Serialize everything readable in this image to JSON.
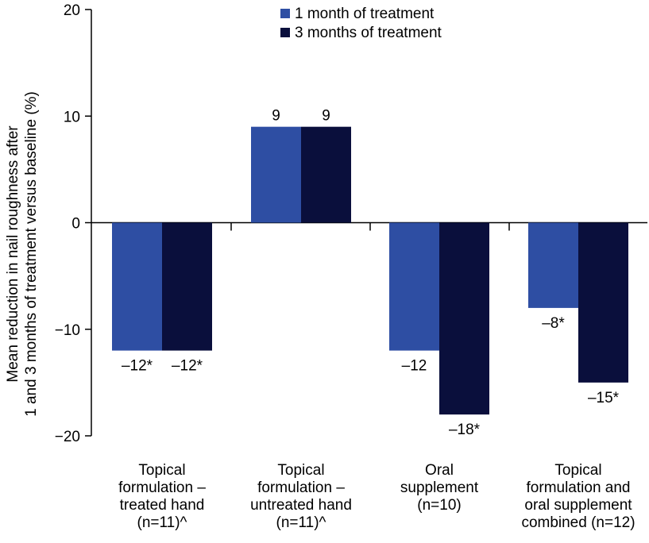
{
  "chart_data": {
    "type": "bar",
    "title": "",
    "ylabel_lines": [
      "Mean reduction in nail roughness after",
      "1 and 3 months of treatment versus baseline (%)"
    ],
    "xlabel": "",
    "ylim": [
      -20,
      20
    ],
    "yticks": [
      20,
      10,
      0,
      -10,
      -20
    ],
    "ytick_labels": [
      "20",
      "10",
      "0",
      "−10",
      "−20"
    ],
    "categories": [
      [
        "Topical",
        "formulation –",
        "treated hand",
        "(n=11)^"
      ],
      [
        "Topical",
        "formulation –",
        "untreated hand",
        "(n=11)^"
      ],
      [
        "Oral",
        "supplement",
        "(n=10)"
      ],
      [
        "Topical",
        "formulation and",
        "oral supplement",
        "combined (n=12)"
      ]
    ],
    "series": [
      {
        "name": "1 month of treatment",
        "color": "#2e4ea3",
        "values": [
          -12,
          9,
          -12,
          -8
        ],
        "labels": [
          "–12*",
          "9",
          "–12",
          "–8*"
        ]
      },
      {
        "name": "3 months of treatment",
        "color": "#0a0f3c",
        "values": [
          -12,
          9,
          -18,
          -15
        ],
        "labels": [
          "–12*",
          "9",
          "–18*",
          "–15*"
        ]
      }
    ],
    "legend_position": "top-center"
  }
}
